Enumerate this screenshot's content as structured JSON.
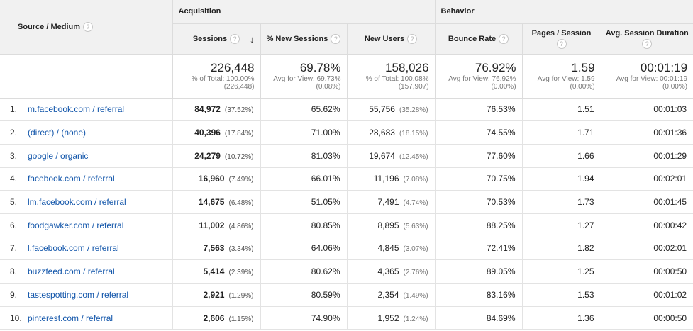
{
  "header": {
    "source_medium": "Source / Medium",
    "acquisition": "Acquisition",
    "behavior": "Behavior",
    "columns": [
      {
        "label": "Sessions",
        "sorted": "descending"
      },
      {
        "label": "% New Sessions"
      },
      {
        "label": "New Users"
      },
      {
        "label": "Bounce Rate"
      },
      {
        "label": "Pages / Session"
      },
      {
        "label": "Avg. Session Duration"
      }
    ],
    "help_glyph": "?",
    "sort_glyph": "↓"
  },
  "totals": [
    {
      "value": "226,448",
      "line1": "% of Total: 100.00%",
      "line2": "(226,448)"
    },
    {
      "value": "69.78%",
      "line1": "Avg for View: 69.73%",
      "line2": "(0.08%)"
    },
    {
      "value": "158,026",
      "line1": "% of Total: 100.08%",
      "line2": "(157,907)"
    },
    {
      "value": "76.92%",
      "line1": "Avg for View: 76.92%",
      "line2": "(0.00%)"
    },
    {
      "value": "1.59",
      "line1": "Avg for View: 1.59",
      "line2": "(0.00%)"
    },
    {
      "value": "00:01:19",
      "line1": "Avg for View: 00:01:19",
      "line2": "(0.00%)"
    }
  ],
  "rows": [
    {
      "num": "1.",
      "source": "m.facebook.com / referral",
      "sessions": "84,972",
      "sessions_pct": "(37.52%)",
      "new_sessions": "65.62%",
      "new_users": "55,756",
      "new_users_pct": "(35.28%)",
      "bounce": "76.53%",
      "pages": "1.51",
      "duration": "00:01:03"
    },
    {
      "num": "2.",
      "source": "(direct) / (none)",
      "sessions": "40,396",
      "sessions_pct": "(17.84%)",
      "new_sessions": "71.00%",
      "new_users": "28,683",
      "new_users_pct": "(18.15%)",
      "bounce": "74.55%",
      "pages": "1.71",
      "duration": "00:01:36"
    },
    {
      "num": "3.",
      "source": "google / organic",
      "sessions": "24,279",
      "sessions_pct": "(10.72%)",
      "new_sessions": "81.03%",
      "new_users": "19,674",
      "new_users_pct": "(12.45%)",
      "bounce": "77.60%",
      "pages": "1.66",
      "duration": "00:01:29"
    },
    {
      "num": "4.",
      "source": "facebook.com / referral",
      "sessions": "16,960",
      "sessions_pct": "(7.49%)",
      "new_sessions": "66.01%",
      "new_users": "11,196",
      "new_users_pct": "(7.08%)",
      "bounce": "70.75%",
      "pages": "1.94",
      "duration": "00:02:01"
    },
    {
      "num": "5.",
      "source": "lm.facebook.com / referral",
      "sessions": "14,675",
      "sessions_pct": "(6.48%)",
      "new_sessions": "51.05%",
      "new_users": "7,491",
      "new_users_pct": "(4.74%)",
      "bounce": "70.53%",
      "pages": "1.73",
      "duration": "00:01:45"
    },
    {
      "num": "6.",
      "source": "foodgawker.com / referral",
      "sessions": "11,002",
      "sessions_pct": "(4.86%)",
      "new_sessions": "80.85%",
      "new_users": "8,895",
      "new_users_pct": "(5.63%)",
      "bounce": "88.25%",
      "pages": "1.27",
      "duration": "00:00:42"
    },
    {
      "num": "7.",
      "source": "l.facebook.com / referral",
      "sessions": "7,563",
      "sessions_pct": "(3.34%)",
      "new_sessions": "64.06%",
      "new_users": "4,845",
      "new_users_pct": "(3.07%)",
      "bounce": "72.41%",
      "pages": "1.82",
      "duration": "00:02:01"
    },
    {
      "num": "8.",
      "source": "buzzfeed.com / referral",
      "sessions": "5,414",
      "sessions_pct": "(2.39%)",
      "new_sessions": "80.62%",
      "new_users": "4,365",
      "new_users_pct": "(2.76%)",
      "bounce": "89.05%",
      "pages": "1.25",
      "duration": "00:00:50"
    },
    {
      "num": "9.",
      "source": "tastespotting.com / referral",
      "sessions": "2,921",
      "sessions_pct": "(1.29%)",
      "new_sessions": "80.59%",
      "new_users": "2,354",
      "new_users_pct": "(1.49%)",
      "bounce": "83.16%",
      "pages": "1.53",
      "duration": "00:01:02"
    },
    {
      "num": "10.",
      "source": "pinterest.com / referral",
      "sessions": "2,606",
      "sessions_pct": "(1.15%)",
      "new_sessions": "74.90%",
      "new_users": "1,952",
      "new_users_pct": "(1.24%)",
      "bounce": "84.69%",
      "pages": "1.36",
      "duration": "00:00:50"
    }
  ]
}
